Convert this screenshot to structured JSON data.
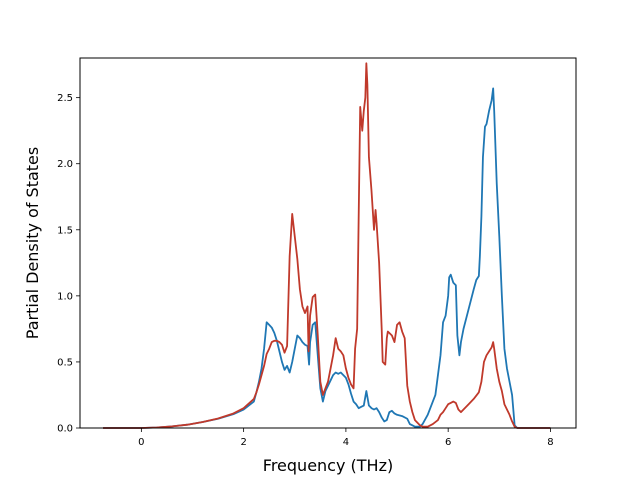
{
  "chart_data": {
    "type": "line",
    "xlabel": "Frequency (THz)",
    "ylabel": "Partial Density of States",
    "xlim": [
      -1.2,
      8.5
    ],
    "ylim": [
      0,
      2.8
    ],
    "x_ticks": [
      0,
      2,
      4,
      6,
      8
    ],
    "y_ticks": [
      0.0,
      0.5,
      1.0,
      1.5,
      2.0,
      2.5
    ],
    "x_tick_labels": [
      "0",
      "2",
      "4",
      "6",
      "8"
    ],
    "y_tick_labels": [
      "0.0",
      "0.5",
      "1.0",
      "1.5",
      "2.0",
      "2.5"
    ],
    "grid": false,
    "series": [
      {
        "color": "#1f77b4",
        "points": [
          [
            -0.75,
            0
          ],
          [
            0,
            0
          ],
          [
            0.3,
            0.004
          ],
          [
            0.6,
            0.012
          ],
          [
            0.9,
            0.025
          ],
          [
            1.2,
            0.045
          ],
          [
            1.5,
            0.07
          ],
          [
            1.8,
            0.105
          ],
          [
            2.0,
            0.14
          ],
          [
            2.2,
            0.2
          ],
          [
            2.25,
            0.27
          ],
          [
            2.3,
            0.35
          ],
          [
            2.35,
            0.45
          ],
          [
            2.4,
            0.6
          ],
          [
            2.45,
            0.8
          ],
          [
            2.5,
            0.78
          ],
          [
            2.55,
            0.76
          ],
          [
            2.6,
            0.72
          ],
          [
            2.65,
            0.66
          ],
          [
            2.7,
            0.58
          ],
          [
            2.75,
            0.5
          ],
          [
            2.8,
            0.44
          ],
          [
            2.85,
            0.47
          ],
          [
            2.9,
            0.42
          ],
          [
            2.95,
            0.5
          ],
          [
            3.0,
            0.6
          ],
          [
            3.05,
            0.7
          ],
          [
            3.1,
            0.68
          ],
          [
            3.15,
            0.65
          ],
          [
            3.2,
            0.63
          ],
          [
            3.25,
            0.62
          ],
          [
            3.28,
            0.48
          ],
          [
            3.3,
            0.65
          ],
          [
            3.35,
            0.78
          ],
          [
            3.4,
            0.8
          ],
          [
            3.45,
            0.55
          ],
          [
            3.5,
            0.3
          ],
          [
            3.55,
            0.2
          ],
          [
            3.6,
            0.28
          ],
          [
            3.65,
            0.32
          ],
          [
            3.7,
            0.36
          ],
          [
            3.75,
            0.4
          ],
          [
            3.8,
            0.42
          ],
          [
            3.85,
            0.41
          ],
          [
            3.9,
            0.42
          ],
          [
            3.95,
            0.4
          ],
          [
            4.0,
            0.38
          ],
          [
            4.05,
            0.33
          ],
          [
            4.1,
            0.26
          ],
          [
            4.15,
            0.2
          ],
          [
            4.2,
            0.18
          ],
          [
            4.25,
            0.15
          ],
          [
            4.3,
            0.16
          ],
          [
            4.35,
            0.17
          ],
          [
            4.4,
            0.28
          ],
          [
            4.45,
            0.17
          ],
          [
            4.5,
            0.15
          ],
          [
            4.55,
            0.14
          ],
          [
            4.6,
            0.15
          ],
          [
            4.65,
            0.12
          ],
          [
            4.7,
            0.08
          ],
          [
            4.75,
            0.05
          ],
          [
            4.8,
            0.06
          ],
          [
            4.85,
            0.12
          ],
          [
            4.9,
            0.13
          ],
          [
            4.95,
            0.11
          ],
          [
            5.0,
            0.1
          ],
          [
            5.1,
            0.09
          ],
          [
            5.2,
            0.07
          ],
          [
            5.25,
            0.03
          ],
          [
            5.3,
            0.02
          ],
          [
            5.35,
            0.01
          ],
          [
            5.45,
            0.01
          ],
          [
            5.5,
            0.03
          ],
          [
            5.6,
            0.1
          ],
          [
            5.7,
            0.2
          ],
          [
            5.75,
            0.25
          ],
          [
            5.8,
            0.4
          ],
          [
            5.85,
            0.55
          ],
          [
            5.9,
            0.8
          ],
          [
            5.95,
            0.85
          ],
          [
            6.0,
            1.0
          ],
          [
            6.02,
            1.14
          ],
          [
            6.05,
            1.16
          ],
          [
            6.1,
            1.1
          ],
          [
            6.15,
            1.08
          ],
          [
            6.18,
            0.7
          ],
          [
            6.22,
            0.55
          ],
          [
            6.25,
            0.65
          ],
          [
            6.3,
            0.75
          ],
          [
            6.4,
            0.9
          ],
          [
            6.5,
            1.05
          ],
          [
            6.55,
            1.12
          ],
          [
            6.6,
            1.15
          ],
          [
            6.62,
            1.3
          ],
          [
            6.65,
            1.6
          ],
          [
            6.68,
            2.05
          ],
          [
            6.72,
            2.28
          ],
          [
            6.75,
            2.3
          ],
          [
            6.8,
            2.4
          ],
          [
            6.85,
            2.48
          ],
          [
            6.88,
            2.57
          ],
          [
            6.9,
            2.4
          ],
          [
            6.95,
            1.85
          ],
          [
            7.0,
            1.45
          ],
          [
            7.05,
            1.0
          ],
          [
            7.1,
            0.6
          ],
          [
            7.15,
            0.45
          ],
          [
            7.2,
            0.35
          ],
          [
            7.25,
            0.25
          ],
          [
            7.3,
            0.02
          ],
          [
            7.35,
            0
          ],
          [
            8.0,
            0
          ]
        ]
      },
      {
        "color": "#c0392b",
        "points": [
          [
            -0.75,
            0
          ],
          [
            0,
            0
          ],
          [
            0.3,
            0.004
          ],
          [
            0.6,
            0.012
          ],
          [
            0.9,
            0.025
          ],
          [
            1.2,
            0.045
          ],
          [
            1.5,
            0.072
          ],
          [
            1.8,
            0.11
          ],
          [
            2.0,
            0.15
          ],
          [
            2.2,
            0.22
          ],
          [
            2.25,
            0.27
          ],
          [
            2.3,
            0.33
          ],
          [
            2.35,
            0.4
          ],
          [
            2.4,
            0.47
          ],
          [
            2.45,
            0.56
          ],
          [
            2.5,
            0.6
          ],
          [
            2.55,
            0.65
          ],
          [
            2.6,
            0.66
          ],
          [
            2.65,
            0.66
          ],
          [
            2.7,
            0.65
          ],
          [
            2.75,
            0.63
          ],
          [
            2.8,
            0.57
          ],
          [
            2.85,
            0.62
          ],
          [
            2.9,
            1.3
          ],
          [
            2.95,
            1.62
          ],
          [
            3.0,
            1.45
          ],
          [
            3.05,
            1.28
          ],
          [
            3.1,
            1.05
          ],
          [
            3.15,
            0.92
          ],
          [
            3.2,
            0.87
          ],
          [
            3.25,
            0.92
          ],
          [
            3.27,
            0.58
          ],
          [
            3.3,
            0.85
          ],
          [
            3.35,
            0.99
          ],
          [
            3.4,
            1.01
          ],
          [
            3.45,
            0.7
          ],
          [
            3.5,
            0.35
          ],
          [
            3.55,
            0.25
          ],
          [
            3.6,
            0.3
          ],
          [
            3.65,
            0.35
          ],
          [
            3.7,
            0.45
          ],
          [
            3.75,
            0.55
          ],
          [
            3.8,
            0.68
          ],
          [
            3.85,
            0.6
          ],
          [
            3.9,
            0.58
          ],
          [
            3.95,
            0.55
          ],
          [
            4.0,
            0.45
          ],
          [
            4.05,
            0.38
          ],
          [
            4.1,
            0.33
          ],
          [
            4.15,
            0.3
          ],
          [
            4.18,
            0.6
          ],
          [
            4.22,
            0.75
          ],
          [
            4.25,
            1.6
          ],
          [
            4.28,
            2.43
          ],
          [
            4.32,
            2.25
          ],
          [
            4.35,
            2.4
          ],
          [
            4.38,
            2.5
          ],
          [
            4.4,
            2.76
          ],
          [
            4.42,
            2.6
          ],
          [
            4.45,
            2.05
          ],
          [
            4.5,
            1.8
          ],
          [
            4.55,
            1.5
          ],
          [
            4.58,
            1.65
          ],
          [
            4.6,
            1.55
          ],
          [
            4.65,
            1.25
          ],
          [
            4.7,
            0.75
          ],
          [
            4.72,
            0.5
          ],
          [
            4.77,
            0.48
          ],
          [
            4.8,
            0.68
          ],
          [
            4.82,
            0.73
          ],
          [
            4.9,
            0.7
          ],
          [
            4.95,
            0.65
          ],
          [
            5.0,
            0.78
          ],
          [
            5.05,
            0.8
          ],
          [
            5.1,
            0.73
          ],
          [
            5.15,
            0.68
          ],
          [
            5.2,
            0.32
          ],
          [
            5.25,
            0.2
          ],
          [
            5.3,
            0.12
          ],
          [
            5.35,
            0.06
          ],
          [
            5.45,
            0.02
          ],
          [
            5.5,
            0.01
          ],
          [
            5.6,
            0.01
          ],
          [
            5.7,
            0.03
          ],
          [
            5.8,
            0.06
          ],
          [
            5.85,
            0.1
          ],
          [
            5.9,
            0.12
          ],
          [
            5.95,
            0.15
          ],
          [
            6.0,
            0.18
          ],
          [
            6.05,
            0.19
          ],
          [
            6.1,
            0.2
          ],
          [
            6.15,
            0.19
          ],
          [
            6.2,
            0.14
          ],
          [
            6.25,
            0.12
          ],
          [
            6.3,
            0.14
          ],
          [
            6.4,
            0.18
          ],
          [
            6.5,
            0.22
          ],
          [
            6.6,
            0.27
          ],
          [
            6.65,
            0.35
          ],
          [
            6.7,
            0.5
          ],
          [
            6.75,
            0.55
          ],
          [
            6.8,
            0.58
          ],
          [
            6.85,
            0.61
          ],
          [
            6.88,
            0.65
          ],
          [
            6.9,
            0.6
          ],
          [
            6.95,
            0.45
          ],
          [
            7.0,
            0.35
          ],
          [
            7.05,
            0.28
          ],
          [
            7.1,
            0.18
          ],
          [
            7.15,
            0.14
          ],
          [
            7.2,
            0.1
          ],
          [
            7.25,
            0.05
          ],
          [
            7.3,
            0.01
          ],
          [
            7.35,
            0
          ],
          [
            8.0,
            0
          ]
        ]
      }
    ]
  }
}
